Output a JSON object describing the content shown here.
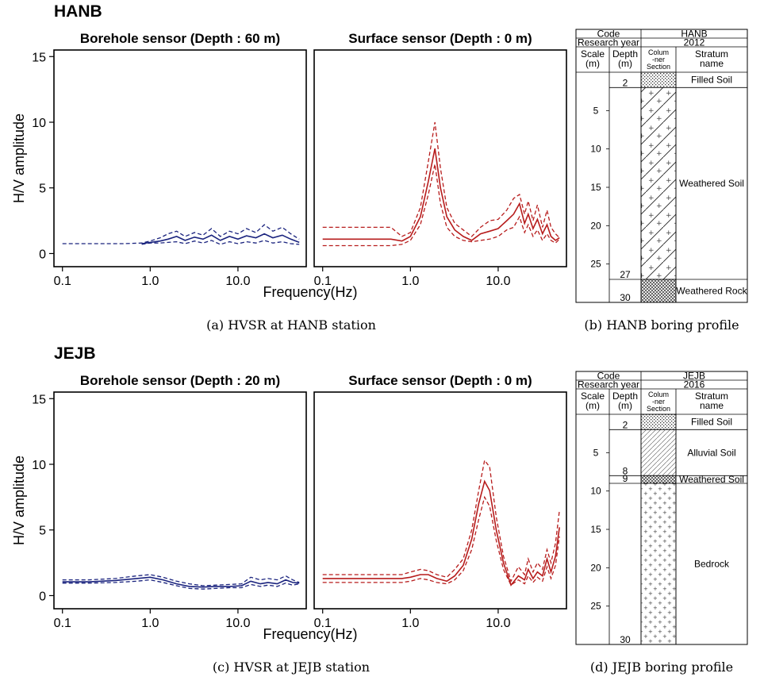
{
  "figure": {
    "station_hanb": "HANB",
    "station_jejb": "JEJB",
    "caption_a": "(a) HVSR at HANB station",
    "caption_b": "(b) HANB boring profile",
    "caption_c": "(c) HVSR at JEJB station",
    "caption_d": "(d) JEJB boring profile"
  },
  "chart_data": [
    {
      "id": "hanb-borehole",
      "type": "line",
      "title": "Borehole sensor (Depth : 60 m)",
      "xlabel": "",
      "ylabel": "H/V amplitude",
      "xscale": "log",
      "xlim": [
        0.08,
        60
      ],
      "ylim": [
        -1,
        15.5
      ],
      "xticks": [
        "0.1",
        "1.0",
        "10.0"
      ],
      "yticks": [
        "0",
        "5",
        "10",
        "15"
      ],
      "color": "#1a237e",
      "x": [
        0.1,
        0.5,
        0.8,
        1.0,
        1.3,
        1.6,
        2.0,
        2.5,
        3.2,
        4.0,
        5.0,
        6.3,
        8.0,
        10.0,
        12.5,
        16.0,
        20.0,
        25.0,
        32.0,
        40.0,
        50.0
      ],
      "series": [
        {
          "style": "dashed",
          "values": [
            0.75,
            0.75,
            0.8,
            0.95,
            1.2,
            1.5,
            1.7,
            1.3,
            1.6,
            1.4,
            1.9,
            1.3,
            1.7,
            1.5,
            1.9,
            1.6,
            2.2,
            1.7,
            2.0,
            1.5,
            1.1
          ]
        },
        {
          "style": "solid",
          "values": [
            null,
            null,
            0.75,
            0.85,
            0.95,
            1.1,
            1.3,
            1.0,
            1.25,
            1.1,
            1.4,
            1.0,
            1.3,
            1.1,
            1.35,
            1.2,
            1.5,
            1.2,
            1.4,
            1.1,
            0.85
          ]
        },
        {
          "style": "dashed",
          "values": [
            null,
            null,
            0.7,
            0.8,
            0.8,
            0.85,
            0.9,
            0.75,
            0.95,
            0.8,
            1.0,
            0.7,
            0.9,
            0.75,
            0.9,
            0.8,
            1.0,
            0.8,
            0.9,
            0.75,
            0.7
          ]
        }
      ]
    },
    {
      "id": "hanb-surface",
      "type": "line",
      "title": "Surface sensor (Depth : 0 m)",
      "xlabel": "Frequency(Hz)",
      "ylabel": "",
      "xscale": "log",
      "xlim": [
        0.08,
        60
      ],
      "ylim": [
        -1,
        15.5
      ],
      "xticks": [
        "0.1",
        "1.0",
        "10.0"
      ],
      "yticks": [],
      "color": "#b71c1c",
      "x": [
        0.1,
        0.6,
        0.8,
        1.0,
        1.3,
        1.6,
        1.9,
        2.2,
        2.6,
        3.2,
        4.0,
        5.0,
        6.3,
        8.0,
        10.0,
        12.5,
        15.0,
        17.5,
        20.0,
        22.0,
        25.0,
        28.0,
        32.0,
        36.0,
        40.0,
        45.0,
        50.0
      ],
      "series": [
        {
          "style": "dashed",
          "values": [
            2.0,
            2.0,
            1.3,
            1.6,
            3.5,
            7.0,
            10.0,
            6.5,
            3.5,
            2.3,
            1.8,
            1.3,
            2.0,
            2.5,
            2.6,
            3.3,
            4.2,
            4.5,
            3.0,
            4.0,
            2.5,
            3.7,
            2.0,
            3.3,
            2.0,
            1.5,
            1.2
          ]
        },
        {
          "style": "solid",
          "values": [
            1.1,
            1.1,
            0.95,
            1.3,
            2.8,
            5.5,
            8.0,
            5.0,
            2.8,
            1.8,
            1.3,
            1.0,
            1.5,
            1.7,
            1.9,
            2.5,
            3.0,
            3.8,
            2.3,
            3.0,
            1.9,
            2.6,
            1.5,
            2.2,
            1.3,
            1.0,
            1.2
          ]
        },
        {
          "style": "dashed",
          "values": [
            0.6,
            0.6,
            0.7,
            1.0,
            2.2,
            4.5,
            6.8,
            3.8,
            2.0,
            1.3,
            1.0,
            0.9,
            1.0,
            1.1,
            1.3,
            1.8,
            2.0,
            2.8,
            1.6,
            2.2,
            1.3,
            1.8,
            1.0,
            1.5,
            1.0,
            0.8,
            1.1
          ]
        }
      ]
    },
    {
      "id": "jejb-borehole",
      "type": "line",
      "title": "Borehole sensor (Depth : 20 m)",
      "xlabel": "",
      "ylabel": "H/V amplitude",
      "xscale": "log",
      "xlim": [
        0.08,
        60
      ],
      "ylim": [
        -1,
        15.5
      ],
      "xticks": [
        "0.1",
        "1.0",
        "10.0"
      ],
      "yticks": [
        "0",
        "5",
        "10",
        "15"
      ],
      "color": "#1a237e",
      "x": [
        0.1,
        0.2,
        0.4,
        0.7,
        1.0,
        1.4,
        2.0,
        2.8,
        4.0,
        5.6,
        8.0,
        11.0,
        14.0,
        18.0,
        22.0,
        28.0,
        35.0,
        42.0,
        50.0
      ],
      "series": [
        {
          "style": "dashed",
          "values": [
            1.2,
            1.2,
            1.3,
            1.5,
            1.6,
            1.4,
            1.1,
            0.9,
            0.75,
            0.8,
            0.85,
            0.9,
            1.4,
            1.2,
            1.3,
            1.2,
            1.5,
            1.2,
            1.0
          ]
        },
        {
          "style": "solid",
          "values": [
            1.05,
            1.05,
            1.15,
            1.3,
            1.4,
            1.2,
            0.9,
            0.7,
            0.65,
            0.7,
            0.7,
            0.75,
            1.1,
            0.9,
            1.0,
            0.9,
            1.2,
            1.0,
            0.95
          ]
        },
        {
          "style": "dashed",
          "values": [
            0.95,
            0.95,
            1.0,
            1.1,
            1.2,
            1.0,
            0.75,
            0.55,
            0.5,
            0.55,
            0.6,
            0.6,
            0.85,
            0.7,
            0.8,
            0.7,
            0.95,
            0.8,
            0.9
          ]
        }
      ]
    },
    {
      "id": "jejb-surface",
      "type": "line",
      "title": "Surface sensor (Depth : 0 m)",
      "xlabel": "Frequency(Hz)",
      "ylabel": "",
      "xscale": "log",
      "xlim": [
        0.08,
        60
      ],
      "ylim": [
        -1,
        15.5
      ],
      "xticks": [
        "0.1",
        "1.0",
        "10.0"
      ],
      "yticks": [],
      "color": "#b71c1c",
      "x": [
        0.1,
        0.6,
        0.8,
        1.0,
        1.3,
        1.6,
        2.0,
        2.6,
        3.2,
        4.0,
        5.0,
        6.0,
        7.0,
        8.0,
        9.5,
        11.5,
        14.0,
        17.0,
        20.0,
        22.0,
        25.0,
        28.0,
        32.0,
        36.0,
        40.0,
        45.0,
        50.0
      ],
      "series": [
        {
          "style": "dashed",
          "values": [
            1.6,
            1.6,
            1.6,
            1.8,
            2.0,
            1.9,
            1.6,
            1.4,
            2.0,
            2.8,
            5.0,
            8.0,
            10.3,
            9.8,
            6.0,
            3.0,
            1.1,
            2.2,
            1.6,
            2.8,
            1.8,
            2.5,
            2.0,
            3.5,
            2.5,
            4.0,
            6.5
          ]
        },
        {
          "style": "solid",
          "values": [
            1.3,
            1.3,
            1.3,
            1.4,
            1.6,
            1.6,
            1.3,
            1.1,
            1.5,
            2.3,
            4.3,
            7.0,
            8.7,
            8.0,
            5.0,
            2.5,
            0.8,
            1.5,
            1.2,
            2.0,
            1.3,
            1.8,
            1.5,
            2.8,
            1.8,
            3.0,
            5.2
          ]
        },
        {
          "style": "dashed",
          "values": [
            1.0,
            1.0,
            1.0,
            1.1,
            1.3,
            1.2,
            1.0,
            0.9,
            1.2,
            1.9,
            3.5,
            5.8,
            7.5,
            6.8,
            4.2,
            2.0,
            0.8,
            1.2,
            0.9,
            1.5,
            1.0,
            1.4,
            1.1,
            2.2,
            1.3,
            2.3,
            4.5
          ]
        }
      ]
    }
  ],
  "boring_profiles": [
    {
      "id": "hanb-profile",
      "code_label": "Code",
      "code": "HANB",
      "year_label": "Research year",
      "year": "2012",
      "col_scale": "Scale (m)",
      "col_depth": "Depth (m)",
      "col_section": "Colum -ner Section",
      "col_stratum": "Stratum name",
      "total_depth": 30,
      "scale_ticks": [
        5,
        10,
        15,
        20,
        25
      ],
      "layers": [
        {
          "name": "Filled Soil",
          "top": 0,
          "bottom": 2,
          "bottom_label": "2",
          "pattern": "filled"
        },
        {
          "name": "Weathered Soil",
          "top": 2,
          "bottom": 27,
          "bottom_label": "27",
          "pattern": "weathered-soil"
        },
        {
          "name": "Weathered Rock",
          "top": 27,
          "bottom": 30,
          "bottom_label": "30",
          "pattern": "weathered-rock"
        }
      ]
    },
    {
      "id": "jejb-profile",
      "code_label": "Code",
      "code": "JEJB",
      "year_label": "Research year",
      "year": "2016",
      "col_scale": "Scale (m)",
      "col_depth": "Depth (m)",
      "col_section": "Colum -ner Section",
      "col_stratum": "Stratum name",
      "total_depth": 30,
      "scale_ticks": [
        5,
        10,
        15,
        20,
        25
      ],
      "layers": [
        {
          "name": "Filled Soil",
          "top": 0,
          "bottom": 2,
          "bottom_label": "2",
          "pattern": "filled"
        },
        {
          "name": "Alluvial Soil",
          "top": 2,
          "bottom": 8,
          "bottom_label": "8",
          "pattern": "alluvial"
        },
        {
          "name": "Weathered Soil",
          "top": 8,
          "bottom": 9,
          "bottom_label": "9",
          "pattern": "weathered-thin"
        },
        {
          "name": "Bedrock",
          "top": 9,
          "bottom": 30,
          "bottom_label": "30",
          "pattern": "bedrock"
        }
      ]
    }
  ]
}
